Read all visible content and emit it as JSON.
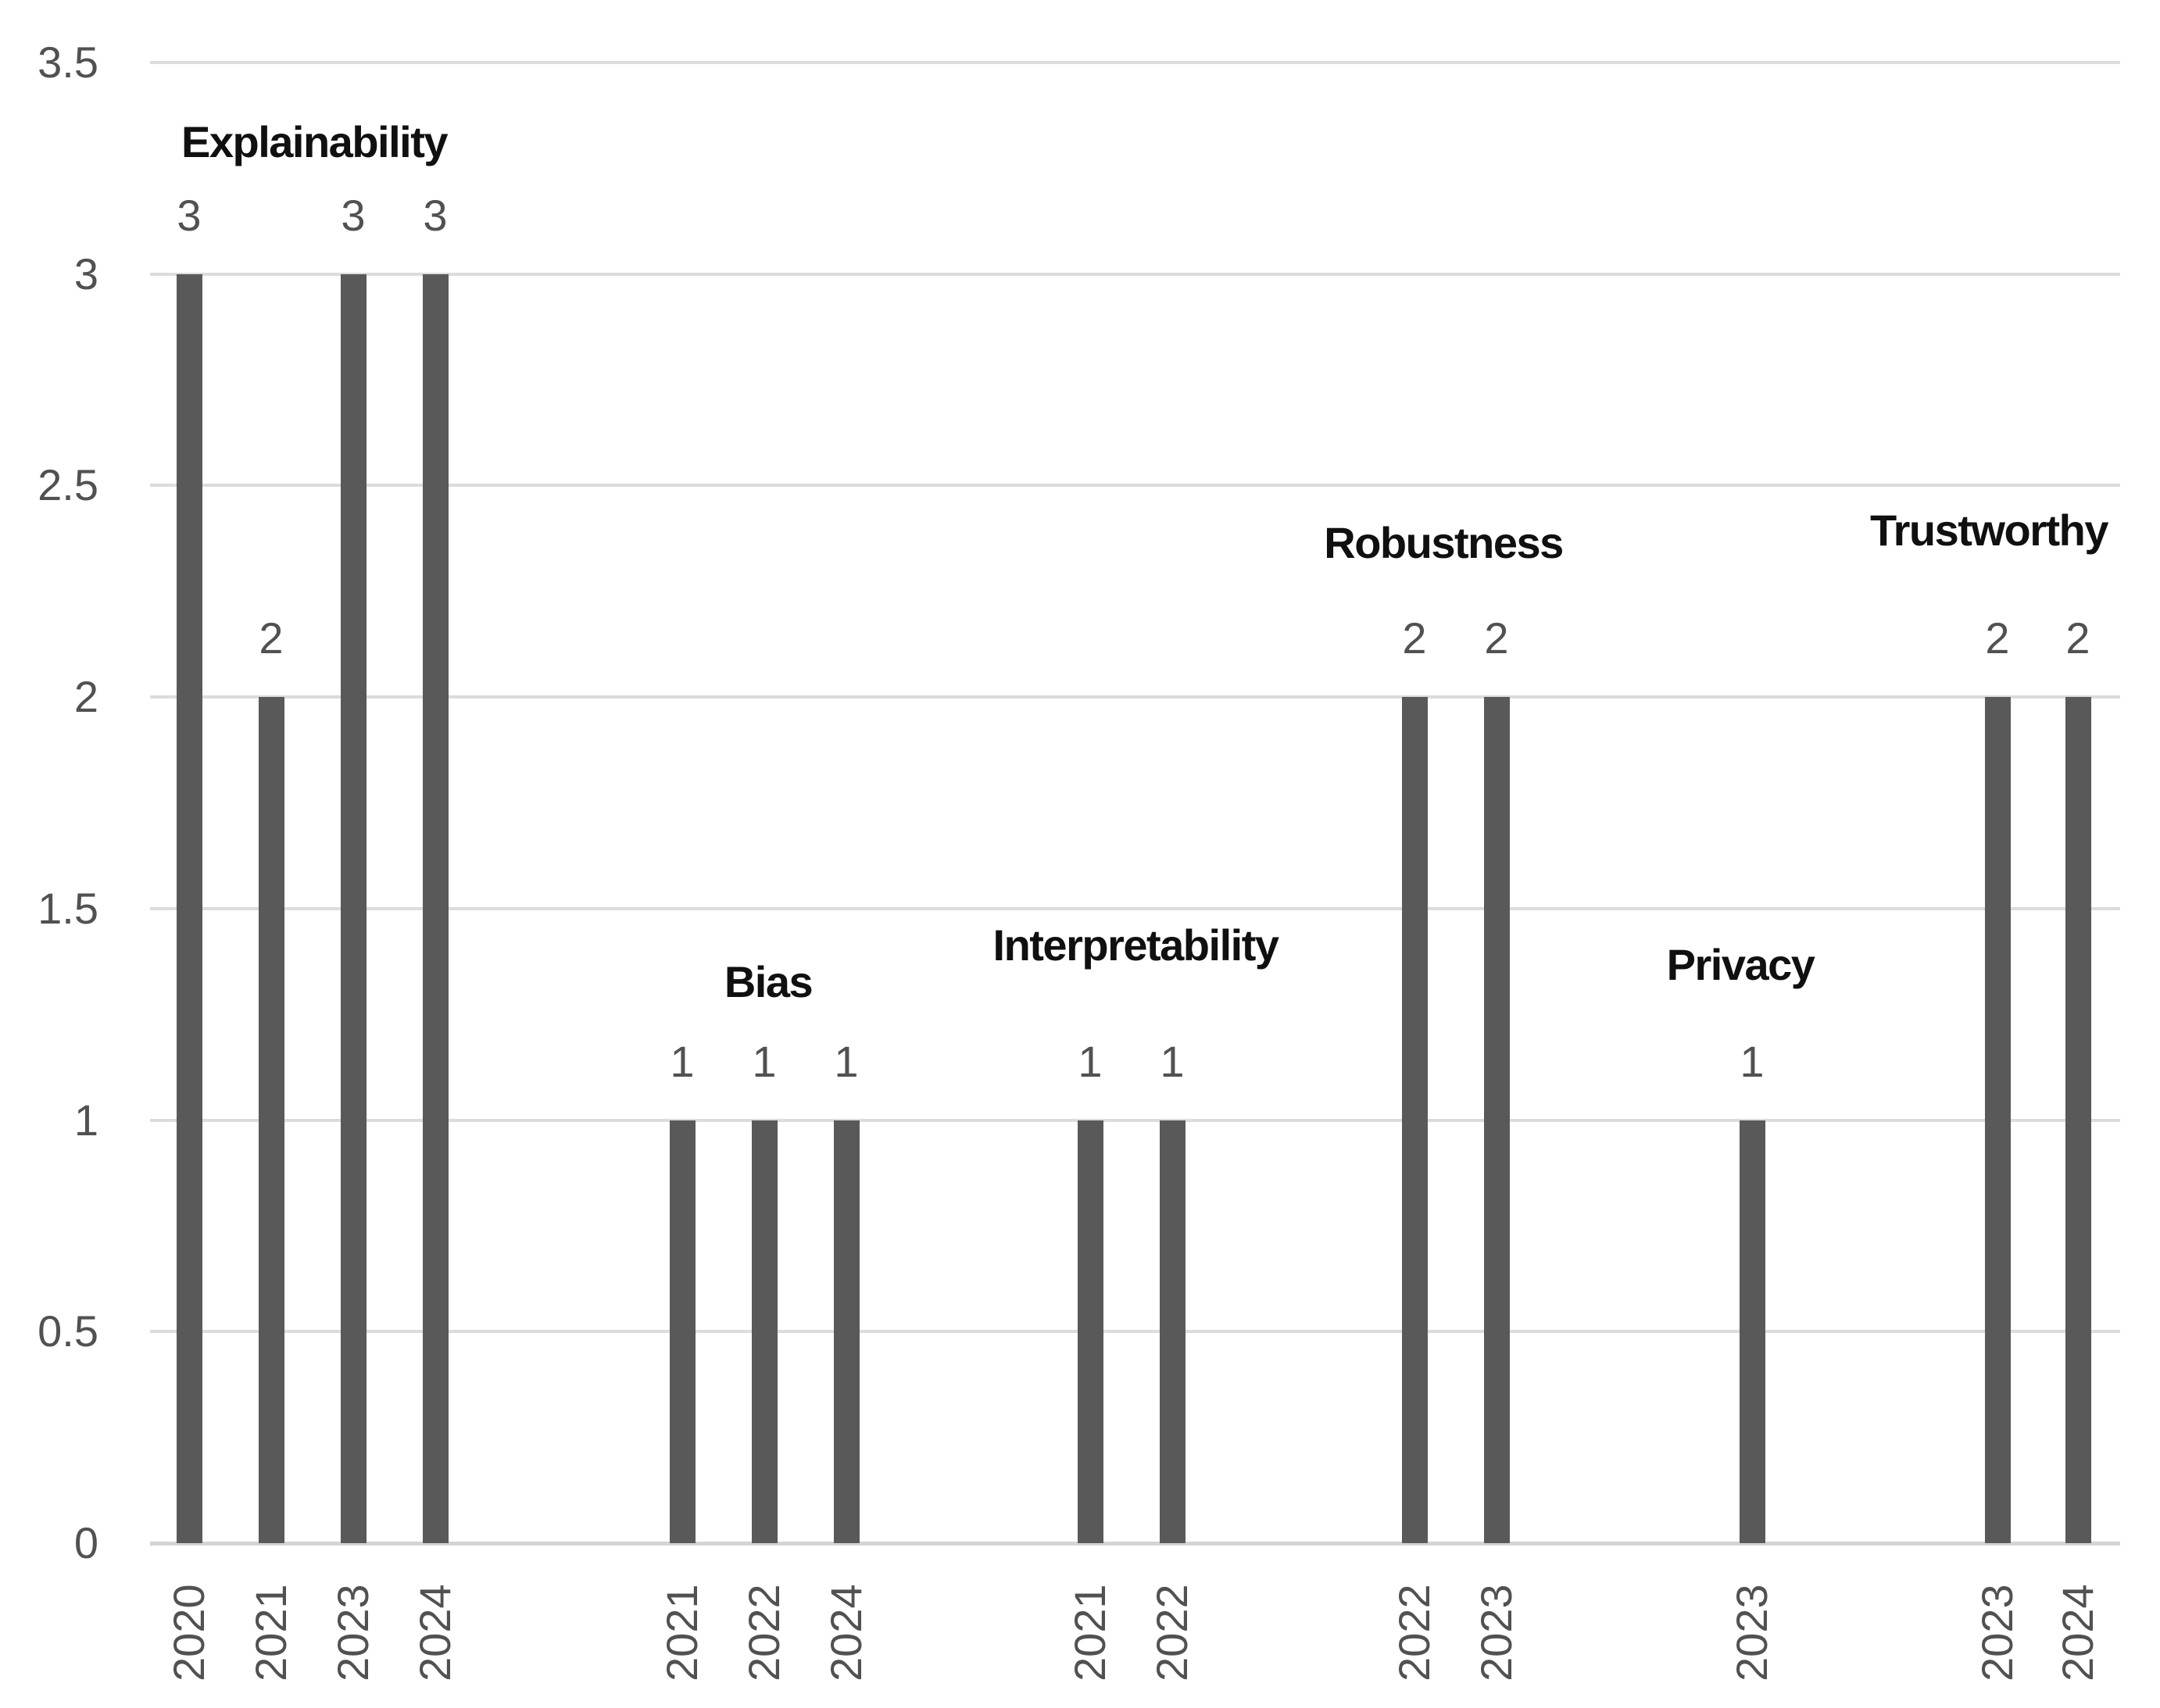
{
  "chart_data": {
    "type": "bar",
    "title": "",
    "xlabel": "",
    "ylabel": "",
    "ylim": [
      0,
      3.5
    ],
    "yticks": [
      0,
      0.5,
      1,
      1.5,
      2,
      2.5,
      3,
      3.5
    ],
    "ytick_labels": [
      "0",
      "0.5",
      "1",
      "1.5",
      "2",
      "2.5",
      "3",
      "3.5"
    ],
    "grid": true,
    "legend_position": "none",
    "bar_color": "#595959",
    "gridline_color": "#dcdcdc",
    "text_color_numbers": "#515151",
    "text_color_group_labels": "#101010",
    "xtick_rotation_degrees": 90,
    "data_labels_shown": true,
    "groups": [
      {
        "label": "Explainability",
        "bars": [
          {
            "year": "2020",
            "value": 3
          },
          {
            "year": "2021",
            "value": 2
          },
          {
            "year": "2023",
            "value": 3
          },
          {
            "year": "2024",
            "value": 3
          }
        ]
      },
      {
        "label": "Bias",
        "bars": [
          {
            "year": "2021",
            "value": 1
          },
          {
            "year": "2022",
            "value": 1
          },
          {
            "year": "2024",
            "value": 1
          }
        ]
      },
      {
        "label": "Interpretability",
        "bars": [
          {
            "year": "2021",
            "value": 1
          },
          {
            "year": "2022",
            "value": 1
          }
        ]
      },
      {
        "label": "Robustness",
        "bars": [
          {
            "year": "2022",
            "value": 2
          },
          {
            "year": "2023",
            "value": 2
          }
        ]
      },
      {
        "label": "Privacy",
        "bars": [
          {
            "year": "2023",
            "value": 1
          }
        ]
      },
      {
        "label": "Trustworthy",
        "bars": [
          {
            "year": "2023",
            "value": 2
          },
          {
            "year": "2024",
            "value": 2
          }
        ]
      }
    ]
  }
}
